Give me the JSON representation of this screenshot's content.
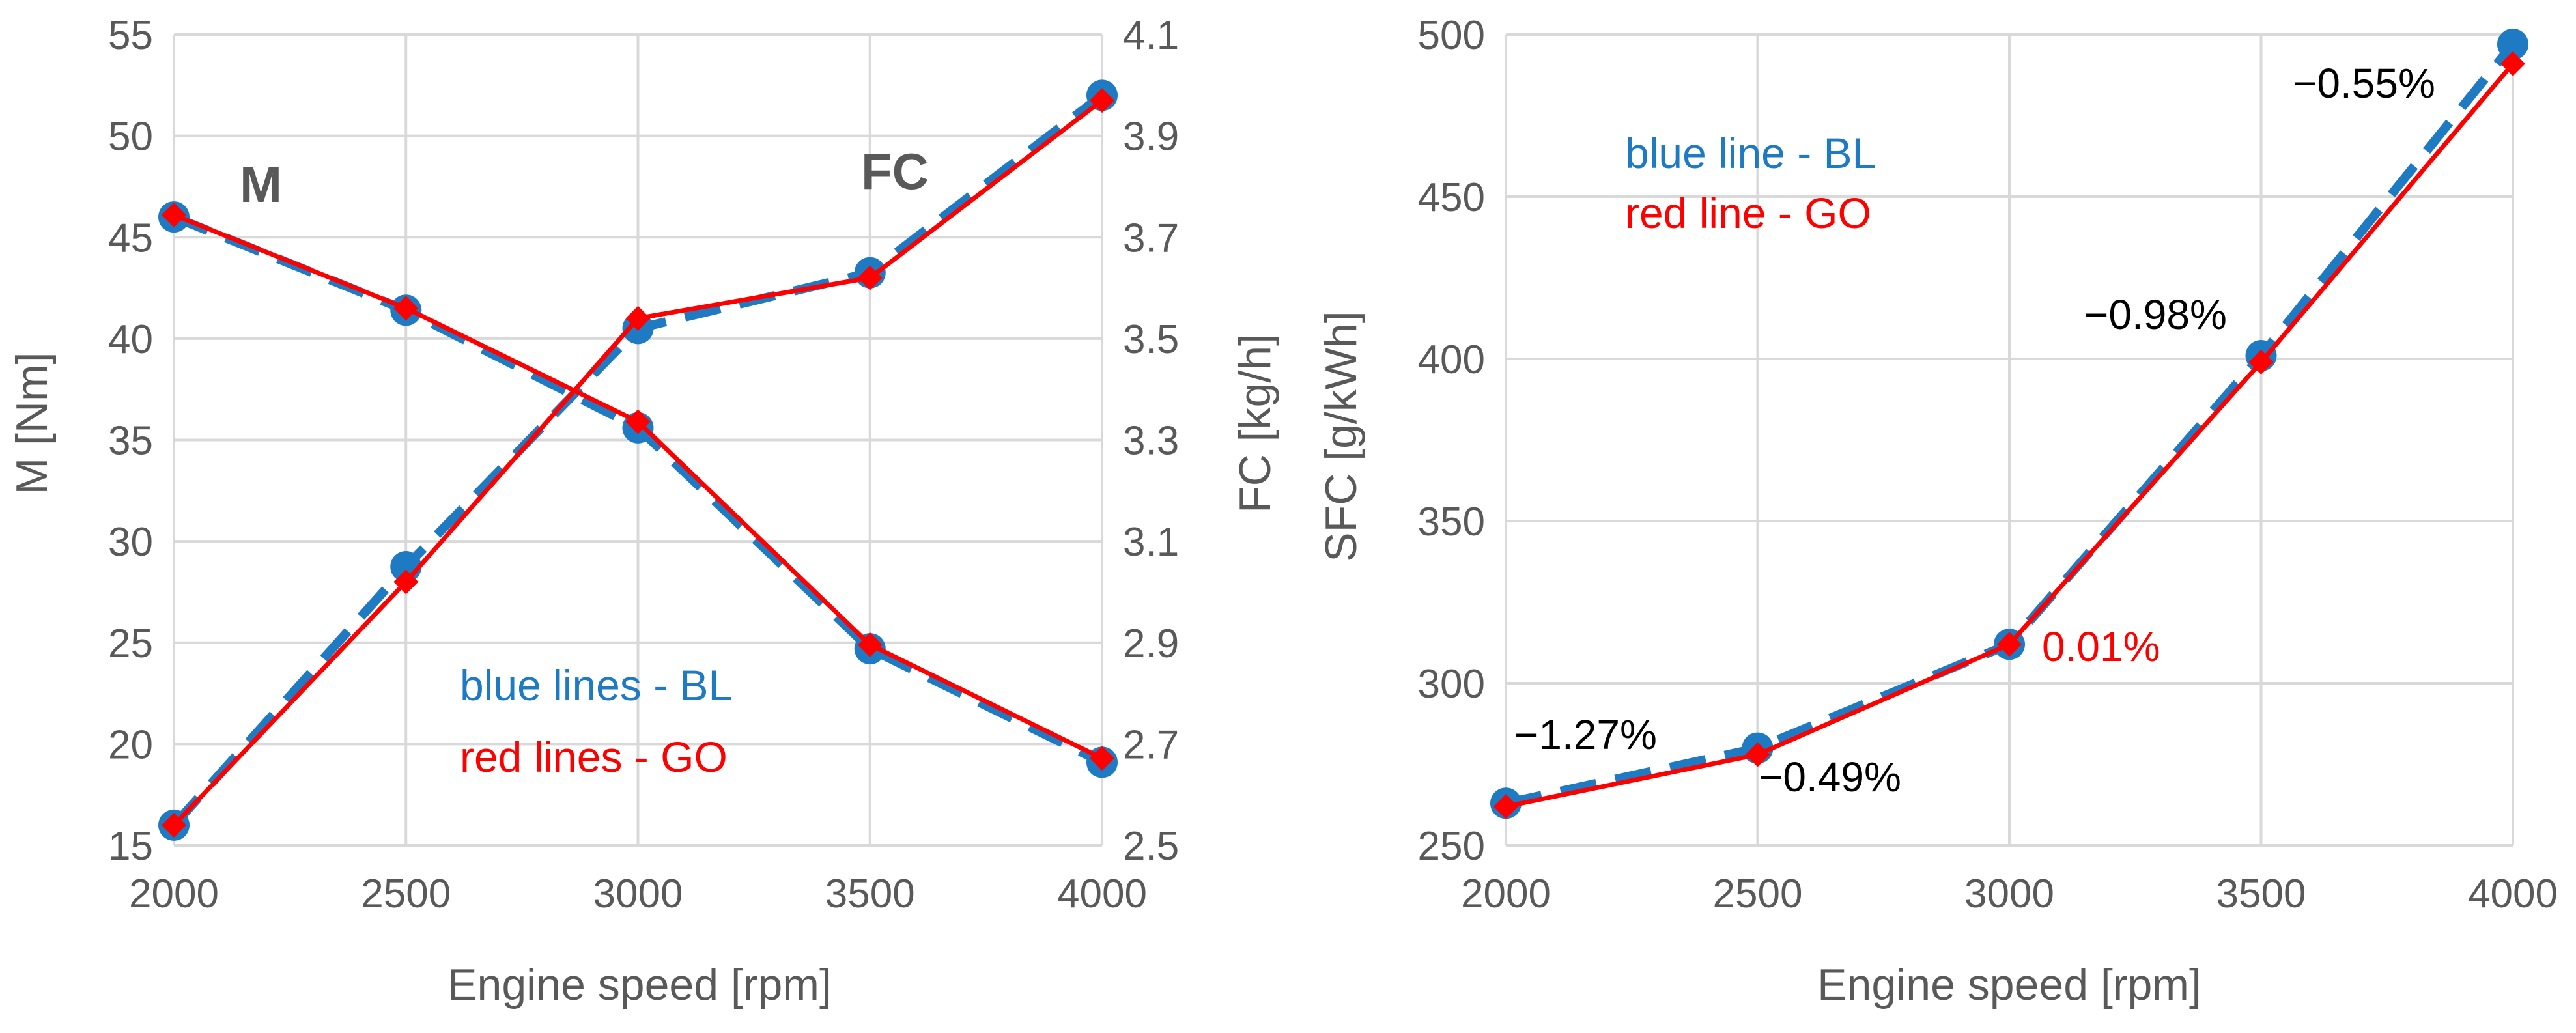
{
  "colors": {
    "blue": "#1f7ac4",
    "red": "#ff0000",
    "text": "#595959",
    "grid": "#d9d9d9"
  },
  "chart_data": [
    {
      "type": "line",
      "xlabel": "Engine speed [rpm]",
      "ylabel": "M [Nm]",
      "y2label": "FC [kg/h]",
      "x": [
        2000,
        2500,
        3000,
        3500,
        4000
      ],
      "xlim": [
        2000,
        4000
      ],
      "ylim": [
        15,
        55
      ],
      "y2lim": [
        2.5,
        4.1
      ],
      "xticks": [
        "2000",
        "2500",
        "3000",
        "3500",
        "4000"
      ],
      "yticks": [
        "15",
        "20",
        "25",
        "30",
        "35",
        "40",
        "45",
        "50",
        "55"
      ],
      "y2ticks": [
        "2.5",
        "2.7",
        "2.9",
        "3.1",
        "3.3",
        "3.5",
        "3.7",
        "3.9",
        "4.1"
      ],
      "grid": true,
      "labels": {
        "torque": "M",
        "fuel": "FC"
      },
      "legend": {
        "blue": "blue lines - BL",
        "red": "red lines - GO"
      },
      "series": [
        {
          "name": "M BL",
          "axis": "left",
          "color": "blue",
          "style": "dashed",
          "values": [
            46.0,
            41.4,
            35.6,
            24.7,
            19.1
          ]
        },
        {
          "name": "M GO",
          "axis": "left",
          "color": "red",
          "style": "solid",
          "values": [
            46.1,
            41.5,
            35.9,
            24.9,
            19.3
          ]
        },
        {
          "name": "FC BL",
          "axis": "right",
          "color": "blue",
          "style": "dashed",
          "values": [
            2.54,
            3.05,
            3.52,
            3.63,
            3.98
          ]
        },
        {
          "name": "FC GO",
          "axis": "right",
          "color": "red",
          "style": "solid",
          "values": [
            2.54,
            3.02,
            3.54,
            3.62,
            3.97
          ]
        }
      ]
    },
    {
      "type": "line",
      "xlabel": "Engine speed [rpm]",
      "ylabel": "SFC [g/kWh]",
      "x": [
        2000,
        2500,
        3000,
        3500,
        4000
      ],
      "xlim": [
        2000,
        4000
      ],
      "ylim": [
        250,
        500
      ],
      "xticks": [
        "2000",
        "2500",
        "3000",
        "3500",
        "4000"
      ],
      "yticks": [
        "250",
        "300",
        "350",
        "400",
        "450",
        "500"
      ],
      "grid": true,
      "legend": {
        "blue": "blue line - BL",
        "red": "red line - GO"
      },
      "series": [
        {
          "name": "SFC BL",
          "color": "blue",
          "style": "dashed",
          "values": [
            263,
            280,
            312,
            401,
            497
          ]
        },
        {
          "name": "SFC GO",
          "color": "red",
          "style": "solid",
          "values": [
            262,
            278,
            312,
            399,
            491
          ]
        }
      ],
      "annotations": [
        {
          "text": "−1.27%",
          "color": "black"
        },
        {
          "text": "−0.49%",
          "color": "black"
        },
        {
          "text": "0.01%",
          "color": "red"
        },
        {
          "text": "−0.98%",
          "color": "black"
        },
        {
          "text": "−0.55%",
          "color": "black"
        }
      ]
    }
  ]
}
